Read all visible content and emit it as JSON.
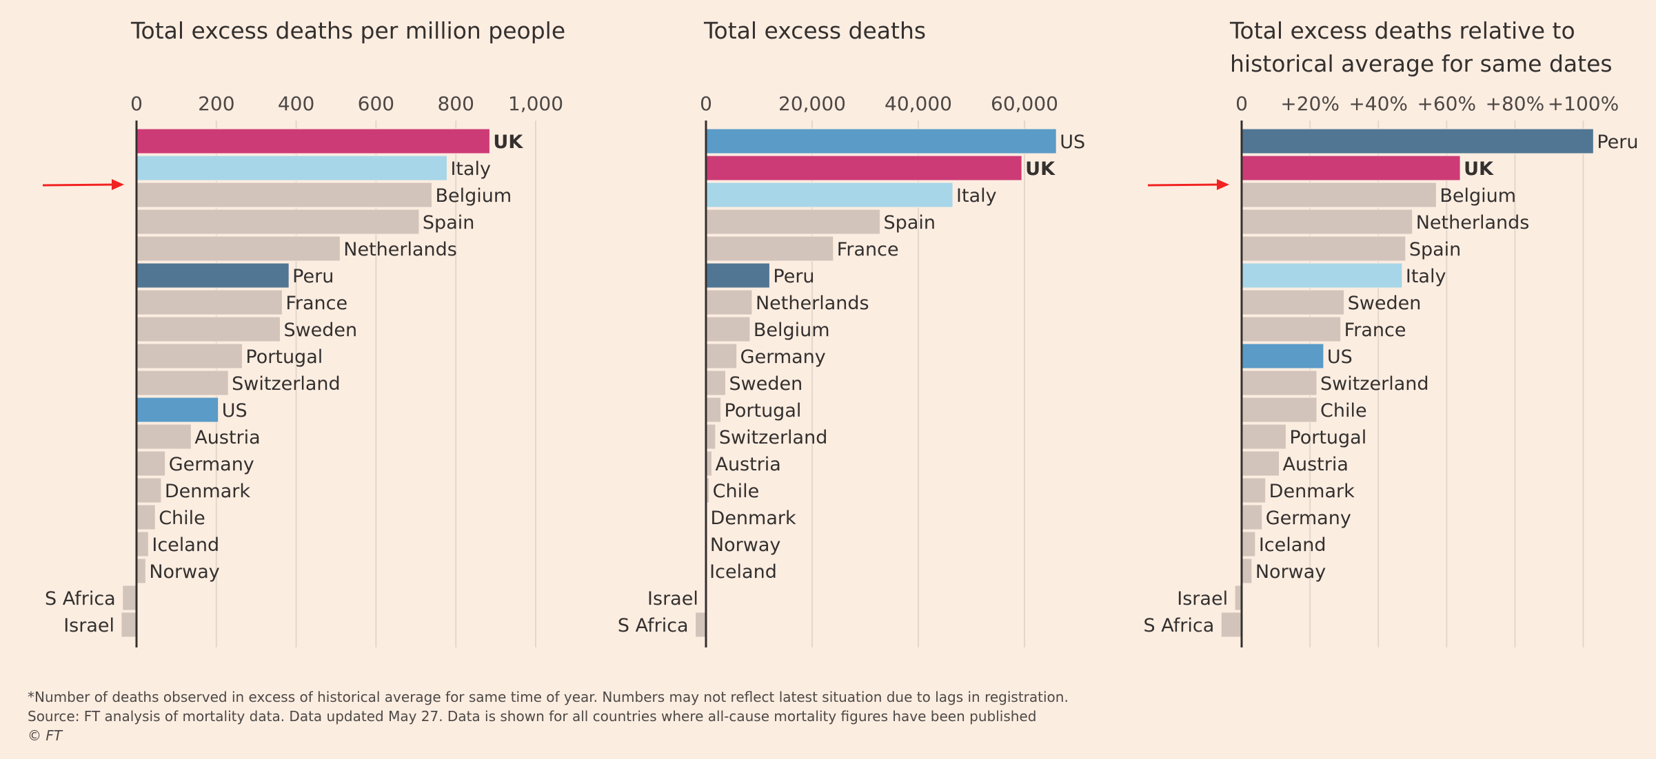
{
  "colors": {
    "UK": "#cc3b76",
    "Italy": "#a6d6e8",
    "Peru": "#517694",
    "US": "#5a9bc7",
    "default": "#d2c4ba",
    "label_UK": "#cc3b76",
    "label_Italy": "#25a3a3",
    "label_Peru": "#1f4a86",
    "label_US": "#2f7ec3",
    "arrow": "#f12222"
  },
  "chart_data": [
    {
      "type": "bar",
      "orientation": "horizontal",
      "title": "Total excess deaths per million people",
      "xlim": [
        0,
        1000
      ],
      "ticks": [
        0,
        200,
        400,
        600,
        800,
        1000
      ],
      "tick_labels": [
        "0",
        "200",
        "400",
        "600",
        "800",
        "1,000"
      ],
      "grid": true,
      "arrow_row": 2,
      "rows": [
        {
          "label": "UK",
          "value": 885
        },
        {
          "label": "Italy",
          "value": 778
        },
        {
          "label": "Belgium",
          "value": 740
        },
        {
          "label": "Spain",
          "value": 708
        },
        {
          "label": "Netherlands",
          "value": 510
        },
        {
          "label": "Peru",
          "value": 382
        },
        {
          "label": "France",
          "value": 365
        },
        {
          "label": "Sweden",
          "value": 360
        },
        {
          "label": "Portugal",
          "value": 265
        },
        {
          "label": "Switzerland",
          "value": 230
        },
        {
          "label": "US",
          "value": 205
        },
        {
          "label": "Austria",
          "value": 137
        },
        {
          "label": "Germany",
          "value": 72
        },
        {
          "label": "Denmark",
          "value": 62
        },
        {
          "label": "Chile",
          "value": 47
        },
        {
          "label": "Iceland",
          "value": 30
        },
        {
          "label": "Norway",
          "value": 23
        },
        {
          "label": "S Africa",
          "value": -35
        },
        {
          "label": "Israel",
          "value": -38
        }
      ]
    },
    {
      "type": "bar",
      "orientation": "horizontal",
      "title": "Total excess deaths",
      "xlim": [
        0,
        70000
      ],
      "ticks": [
        0,
        20000,
        40000,
        60000
      ],
      "tick_labels": [
        "0",
        "20,000",
        "40,000",
        "60,000"
      ],
      "grid": true,
      "arrow_row": null,
      "rows": [
        {
          "label": "US",
          "value": 66000
        },
        {
          "label": "UK",
          "value": 59500
        },
        {
          "label": "Italy",
          "value": 46500
        },
        {
          "label": "Spain",
          "value": 32800
        },
        {
          "label": "France",
          "value": 24000
        },
        {
          "label": "Peru",
          "value": 12000
        },
        {
          "label": "Netherlands",
          "value": 8700
        },
        {
          "label": "Belgium",
          "value": 8300
        },
        {
          "label": "Germany",
          "value": 5800
        },
        {
          "label": "Sweden",
          "value": 3700
        },
        {
          "label": "Portugal",
          "value": 2800
        },
        {
          "label": "Switzerland",
          "value": 1800
        },
        {
          "label": "Austria",
          "value": 1100
        },
        {
          "label": "Chile",
          "value": 600
        },
        {
          "label": "Denmark",
          "value": 200
        },
        {
          "label": "Norway",
          "value": 120
        },
        {
          "label": "Iceland",
          "value": 20
        },
        {
          "label": "Israel",
          "value": -150
        },
        {
          "label": "S Africa",
          "value": -2000
        }
      ]
    },
    {
      "type": "bar",
      "orientation": "horizontal",
      "title": "Total excess deaths relative to historical average for same dates",
      "title_lines": [
        "Total excess deaths relative to",
        "historical average for same dates"
      ],
      "xlim": [
        0,
        110
      ],
      "ticks": [
        0,
        20,
        40,
        60,
        80,
        100
      ],
      "tick_labels": [
        "0",
        "+20%",
        "+40%",
        "+60%",
        "+80%",
        "+100%"
      ],
      "grid": true,
      "arrow_row": 2,
      "rows": [
        {
          "label": "Peru",
          "value": 103
        },
        {
          "label": "UK",
          "value": 64
        },
        {
          "label": "Belgium",
          "value": 57
        },
        {
          "label": "Netherlands",
          "value": 50
        },
        {
          "label": "Spain",
          "value": 48
        },
        {
          "label": "Italy",
          "value": 47
        },
        {
          "label": "Sweden",
          "value": 30
        },
        {
          "label": "France",
          "value": 29
        },
        {
          "label": "US",
          "value": 24
        },
        {
          "label": "Switzerland",
          "value": 22
        },
        {
          "label": "Chile",
          "value": 22
        },
        {
          "label": "Portugal",
          "value": 13
        },
        {
          "label": "Austria",
          "value": 11
        },
        {
          "label": "Denmark",
          "value": 7
        },
        {
          "label": "Germany",
          "value": 6
        },
        {
          "label": "Iceland",
          "value": 4
        },
        {
          "label": "Norway",
          "value": 3
        },
        {
          "label": "Israel",
          "value": -2
        },
        {
          "label": "S Africa",
          "value": -6
        }
      ]
    }
  ],
  "footer": {
    "note": "*Number of deaths observed in excess of historical average for same time of year. Numbers may not reflect latest situation due to lags in registration.",
    "source": "Source: FT analysis of mortality data. Data updated May 27. Data is shown for all countries where all-cause mortality figures have been published",
    "copyright": "© FT"
  }
}
